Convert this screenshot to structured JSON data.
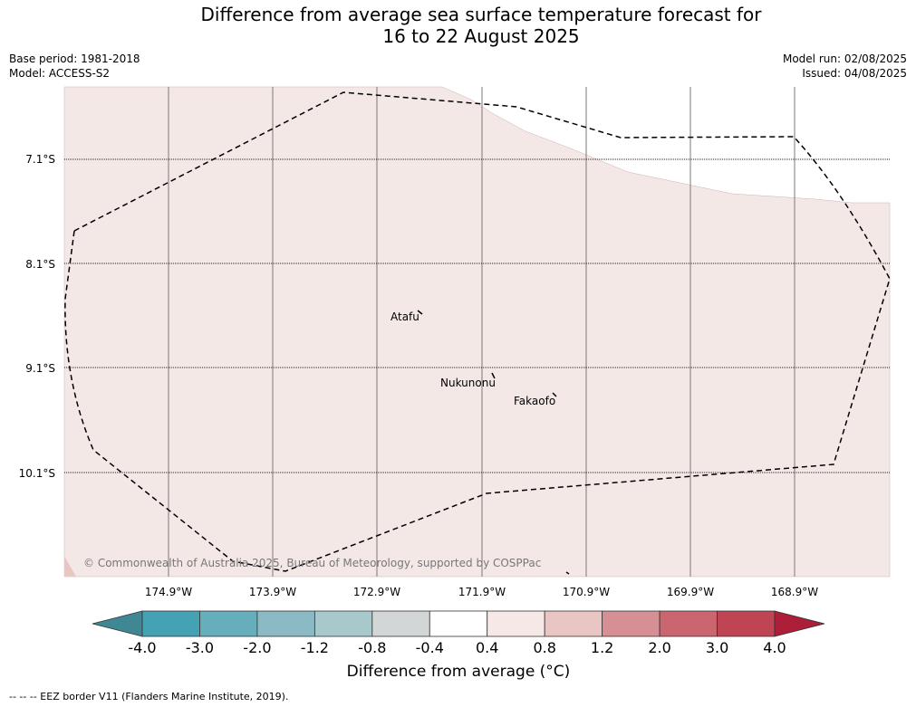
{
  "header": {
    "title_line1": "Difference from average sea surface temperature forecast for",
    "title_line2": "16 to 22 August 2025",
    "base_period": "Base period: 1981-2018",
    "model": "Model: ACCESS-S2",
    "model_run": "Model run: 02/08/2025",
    "issued": "Issued: 04/08/2025"
  },
  "map": {
    "lat_labels": [
      "7.1°S",
      "8.1°S",
      "9.1°S",
      "10.1°S"
    ],
    "lon_labels": [
      "174.9°W",
      "173.9°W",
      "172.9°W",
      "171.9°W",
      "170.9°W",
      "169.9°W",
      "168.9°W"
    ],
    "places": [
      "Atafu",
      "Nukunonu",
      "Fakaofo"
    ],
    "copyright": "© Commonwealth of Australia 2025, Bureau of Meteorology, supported by COSPPac",
    "anomaly_fill_color": "#f4e8e7"
  },
  "colorbar": {
    "tick_labels": [
      "-4.0",
      "-3.0",
      "-2.0",
      "-1.2",
      "-0.8",
      "-0.4",
      "0.4",
      "0.8",
      "1.2",
      "2.0",
      "3.0",
      "4.0"
    ],
    "colors": [
      "#3f8793",
      "#44a2b4",
      "#67aebd",
      "#8bbac4",
      "#a8c9cc",
      "#d2d6d6",
      "#ffffff",
      "#f5e8e7",
      "#e9c6c3",
      "#d68f94",
      "#cb6570",
      "#bf4554",
      "#ad1e38"
    ],
    "title": "Difference from average (°C)"
  },
  "footer": {
    "legend": "--  --  -- EEZ border V11 (Flanders Marine Institute, 2019)."
  }
}
